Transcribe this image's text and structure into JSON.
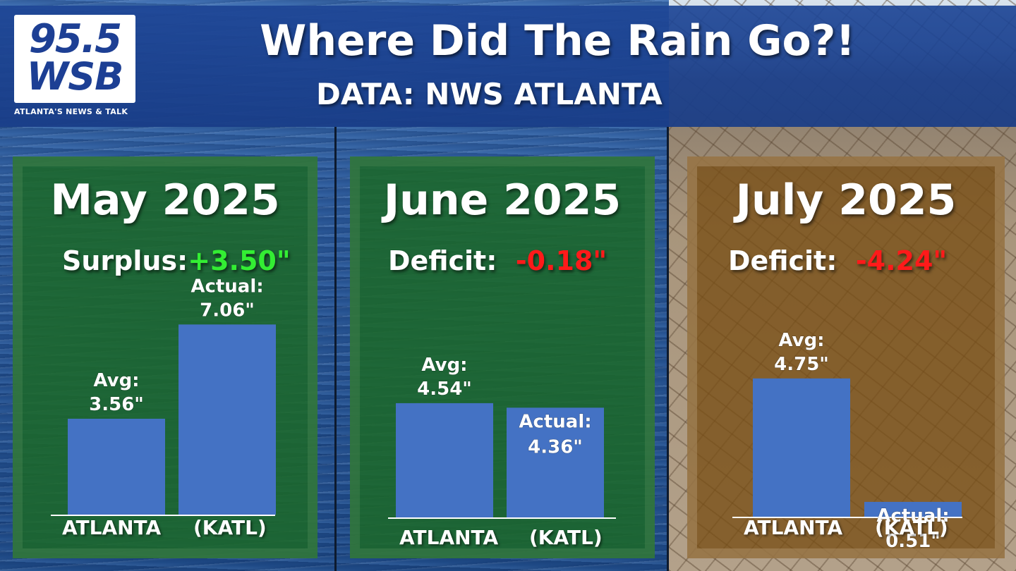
{
  "header": {
    "title": "Where Did The Rain Go?!",
    "subtitle": "DATA: NWS ATLANTA",
    "logo": {
      "number": "95.5",
      "call": "WSB",
      "tagline": "ATLANTA'S NEWS & TALK"
    }
  },
  "colors": {
    "bar": "#4472c4",
    "surplus": "#33ee33",
    "deficit": "#ff1a1a"
  },
  "chart_data": [
    {
      "type": "bar",
      "title": "May 2025",
      "summary_label": "Surplus:",
      "summary_value": "+3.50\"",
      "summary_kind": "surplus",
      "categories": [
        "Avg",
        "Actual"
      ],
      "values": [
        3.56,
        7.06
      ],
      "value_labels": [
        "Avg:",
        "Actual:"
      ],
      "value_texts": [
        "3.56\"",
        "7.06\""
      ],
      "xlabel_left": "ATLANTA",
      "xlabel_right": "(KATL)"
    },
    {
      "type": "bar",
      "title": "June 2025",
      "summary_label": "Deficit:",
      "summary_value": "-0.18\"",
      "summary_kind": "deficit",
      "categories": [
        "Avg",
        "Actual"
      ],
      "values": [
        4.54,
        4.36
      ],
      "value_labels": [
        "Avg:",
        "Actual:"
      ],
      "value_texts": [
        "4.54\"",
        "4.36\""
      ],
      "xlabel_left": "ATLANTA",
      "xlabel_right": "(KATL)"
    },
    {
      "type": "bar",
      "title": "July 2025",
      "summary_label": "Deficit:",
      "summary_value": "-4.24\"",
      "summary_kind": "deficit",
      "categories": [
        "Avg",
        "Actual"
      ],
      "values": [
        4.75,
        0.51
      ],
      "value_labels": [
        "Avg:",
        "Actual:"
      ],
      "value_texts": [
        "4.75\"",
        "0.51\""
      ],
      "xlabel_left": "ATLANTA",
      "xlabel_right": "(KATL)"
    }
  ]
}
